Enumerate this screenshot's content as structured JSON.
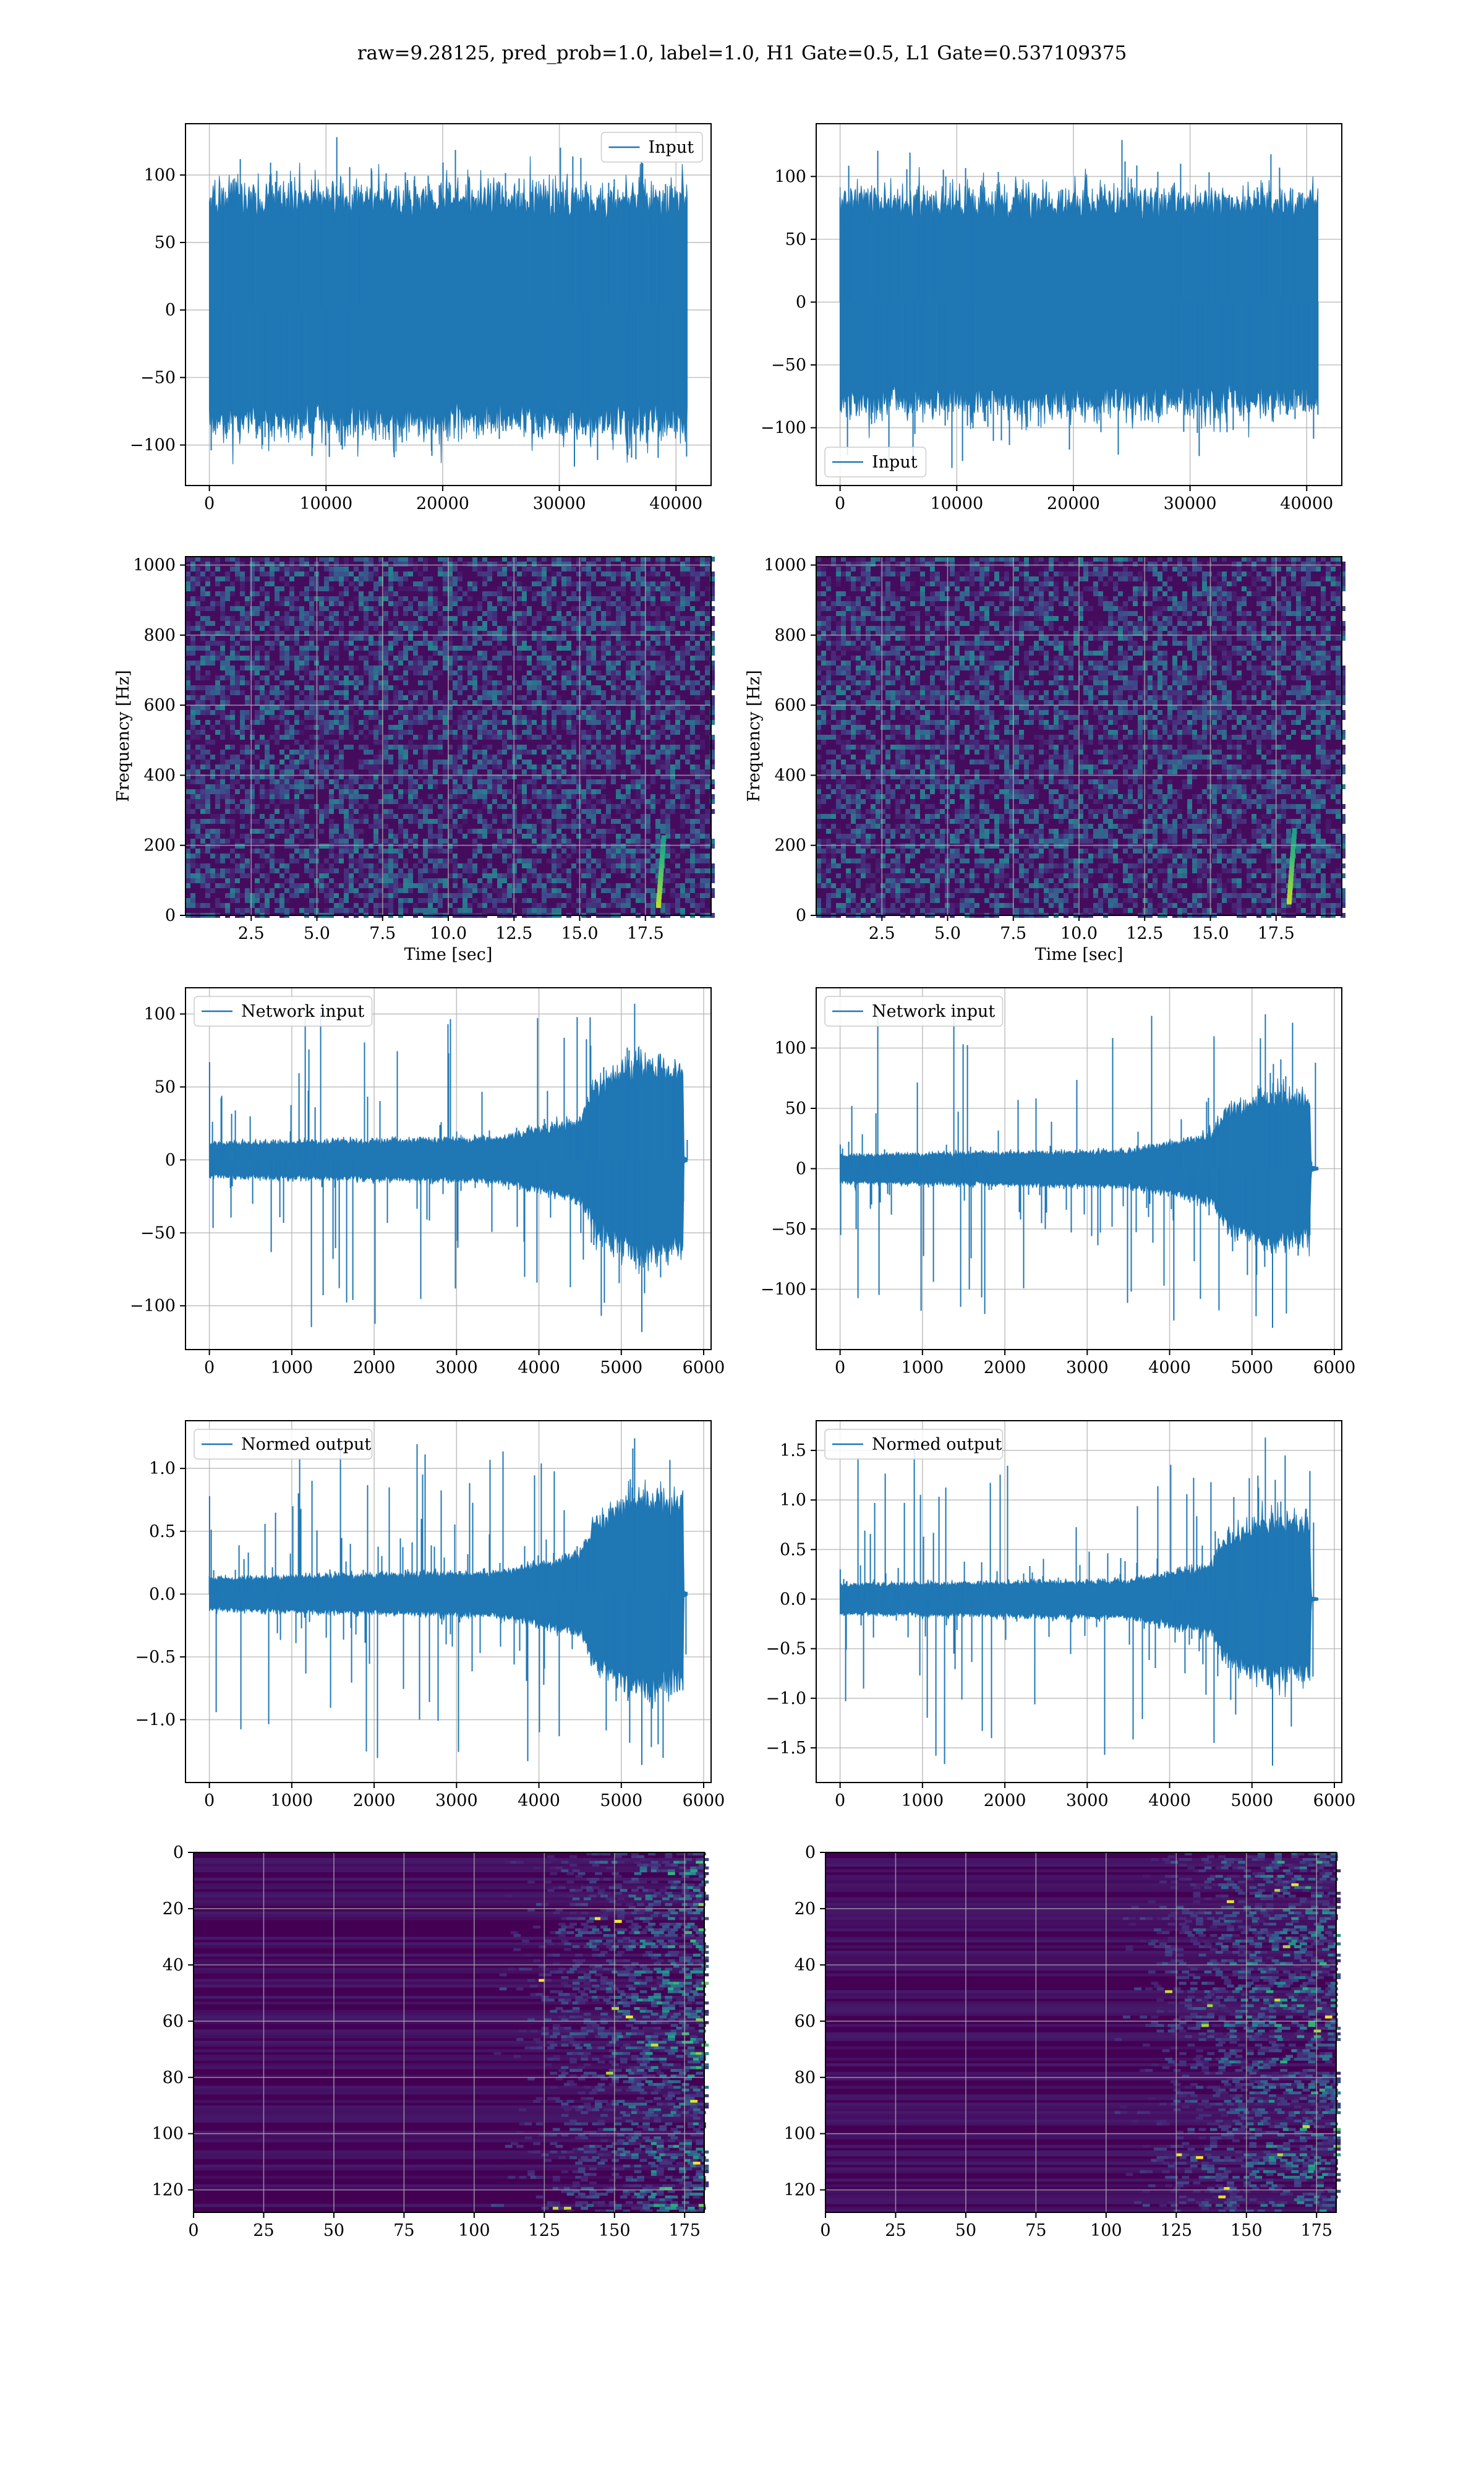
{
  "suptitle": "raw=9.28125, pred_prob=1.0, label=1.0, H1 Gate=0.5, L1 Gate=0.537109375",
  "colors": {
    "line": "#1f77b4",
    "viridis_dark": "#440154",
    "grid": "#b0b0b0"
  },
  "chart_data": [
    {
      "id": "input-h1",
      "type": "line",
      "series": [
        {
          "name": "Input"
        }
      ],
      "legend": "top-right",
      "grid": true,
      "xlim": [
        -2048,
        43008
      ],
      "ylim": [
        -130,
        138
      ],
      "xticks": [
        0,
        10000,
        20000,
        30000,
        40000
      ],
      "xticklabels": [
        "0",
        "10000",
        "20000",
        "30000",
        "40000"
      ],
      "yticks": [
        -100,
        -50,
        0,
        50,
        100
      ],
      "yticklabels": [
        "−100",
        "−50",
        "0",
        "50",
        "100"
      ],
      "signal": {
        "n": 40960,
        "envelope": [
          [
            0,
            75
          ],
          [
            40960,
            75
          ]
        ],
        "peak_max": 128,
        "peak_min": -116
      }
    },
    {
      "id": "input-l1",
      "type": "line",
      "series": [
        {
          "name": "Input"
        }
      ],
      "legend": "bottom-left",
      "grid": true,
      "xlim": [
        -2048,
        43008
      ],
      "ylim": [
        -146,
        142
      ],
      "xticks": [
        0,
        10000,
        20000,
        30000,
        40000
      ],
      "xticklabels": [
        "0",
        "10000",
        "20000",
        "30000",
        "40000"
      ],
      "yticks": [
        -100,
        -50,
        0,
        50,
        100
      ],
      "yticklabels": [
        "−100",
        "−50",
        "0",
        "50",
        "100"
      ],
      "signal": {
        "n": 40960,
        "envelope": [
          [
            0,
            72
          ],
          [
            40960,
            72
          ]
        ],
        "peak_max": 129,
        "peak_min": -132
      }
    },
    {
      "id": "spec-h1",
      "type": "heatmap",
      "colormap": "viridis",
      "grid": true,
      "xlabel": "Time [sec]",
      "ylabel": "Frequency [Hz]",
      "xlim": [
        0,
        20
      ],
      "ylim": [
        0,
        1024
      ],
      "xticks": [
        2.5,
        5,
        7.5,
        10,
        12.5,
        15,
        17.5
      ],
      "xticklabels": [
        "2.5",
        "5.0",
        "7.5",
        "10.0",
        "12.5",
        "15.0",
        "17.5"
      ],
      "yticks": [
        0,
        200,
        400,
        600,
        800,
        1000
      ],
      "yticklabels": [
        "0",
        "200",
        "400",
        "600",
        "800",
        "1000"
      ],
      "chirp": {
        "t_start": 18.0,
        "t_end": 18.2,
        "f_start": 30,
        "f_end": 220
      }
    },
    {
      "id": "spec-l1",
      "type": "heatmap",
      "colormap": "viridis",
      "grid": true,
      "xlabel": "Time [sec]",
      "ylabel": "Frequency [Hz]",
      "xlim": [
        0,
        20
      ],
      "ylim": [
        0,
        1024
      ],
      "xticks": [
        2.5,
        5,
        7.5,
        10,
        12.5,
        15,
        17.5
      ],
      "xticklabels": [
        "2.5",
        "5.0",
        "7.5",
        "10.0",
        "12.5",
        "15.0",
        "17.5"
      ],
      "yticks": [
        0,
        200,
        400,
        600,
        800,
        1000
      ],
      "yticklabels": [
        "0",
        "200",
        "400",
        "600",
        "800",
        "1000"
      ],
      "chirp": {
        "t_start": 18.0,
        "t_end": 18.2,
        "f_start": 40,
        "f_end": 240
      }
    },
    {
      "id": "net-h1",
      "type": "line",
      "series": [
        {
          "name": "Network input"
        }
      ],
      "legend": "top-left",
      "grid": true,
      "xlim": [
        -290,
        6090
      ],
      "ylim": [
        -130,
        118
      ],
      "xticks": [
        0,
        1000,
        2000,
        3000,
        4000,
        5000,
        6000
      ],
      "xticklabels": [
        "0",
        "1000",
        "2000",
        "3000",
        "4000",
        "5000",
        "6000"
      ],
      "yticks": [
        -100,
        -50,
        0,
        50,
        100
      ],
      "yticklabels": [
        "−100",
        "−50",
        "0",
        "50",
        "100"
      ],
      "signal": {
        "n": 5800,
        "envelope": [
          [
            0,
            10
          ],
          [
            3500,
            13
          ],
          [
            4500,
            24
          ],
          [
            4700,
            45
          ],
          [
            5200,
            58
          ],
          [
            5750,
            55
          ],
          [
            5760,
            2
          ],
          [
            5800,
            1
          ]
        ],
        "peak_max": 107,
        "peak_min": -118,
        "spike_start": 67
      }
    },
    {
      "id": "net-l1",
      "type": "line",
      "series": [
        {
          "name": "Network input"
        }
      ],
      "legend": "top-left",
      "grid": true,
      "xlim": [
        -290,
        6090
      ],
      "ylim": [
        -150,
        150
      ],
      "xticks": [
        0,
        1000,
        2000,
        3000,
        4000,
        5000,
        6000
      ],
      "xticklabels": [
        "0",
        "1000",
        "2000",
        "3000",
        "4000",
        "5000",
        "6000"
      ],
      "yticks": [
        -100,
        -50,
        0,
        50,
        100
      ],
      "yticklabels": [
        "−100",
        "−50",
        "0",
        "50",
        "100"
      ],
      "signal": {
        "n": 5800,
        "envelope": [
          [
            0,
            10
          ],
          [
            3500,
            13
          ],
          [
            4500,
            24
          ],
          [
            4700,
            44
          ],
          [
            5200,
            55
          ],
          [
            5700,
            52
          ],
          [
            5720,
            2
          ],
          [
            5800,
            1
          ]
        ],
        "peak_max": 128,
        "peak_min": -132,
        "spike_start": 20
      }
    },
    {
      "id": "norm-h1",
      "type": "line",
      "series": [
        {
          "name": "Normed output"
        }
      ],
      "legend": "top-left",
      "grid": true,
      "xlim": [
        -290,
        6090
      ],
      "ylim": [
        -1.5,
        1.38
      ],
      "xticks": [
        0,
        1000,
        2000,
        3000,
        4000,
        5000,
        6000
      ],
      "xticklabels": [
        "0",
        "1000",
        "2000",
        "3000",
        "4000",
        "5000",
        "6000"
      ],
      "yticks": [
        -1.0,
        -0.5,
        0.0,
        0.5,
        1.0
      ],
      "yticklabels": [
        "−1.0",
        "−0.5",
        "0.0",
        "0.5",
        "1.0"
      ],
      "signal": {
        "n": 5800,
        "envelope": [
          [
            0,
            0.11
          ],
          [
            3500,
            0.15
          ],
          [
            4500,
            0.28
          ],
          [
            4700,
            0.52
          ],
          [
            5200,
            0.68
          ],
          [
            5750,
            0.64
          ],
          [
            5760,
            0.02
          ],
          [
            5800,
            0.01
          ]
        ],
        "peak_max": 1.24,
        "peak_min": -1.36,
        "spike_start": 0.78
      }
    },
    {
      "id": "norm-l1",
      "type": "line",
      "series": [
        {
          "name": "Normed output"
        }
      ],
      "legend": "top-left",
      "grid": true,
      "xlim": [
        -290,
        6090
      ],
      "ylim": [
        -1.85,
        1.8
      ],
      "xticks": [
        0,
        1000,
        2000,
        3000,
        4000,
        5000,
        6000
      ],
      "xticklabels": [
        "0",
        "1000",
        "2000",
        "3000",
        "4000",
        "5000",
        "6000"
      ],
      "yticks": [
        -1.5,
        -1.0,
        -0.5,
        0.0,
        0.5,
        1.0,
        1.5
      ],
      "yticklabels": [
        "−1.5",
        "−1.0",
        "−0.5",
        "0.0",
        "0.5",
        "1.0",
        "1.5"
      ],
      "signal": {
        "n": 5800,
        "envelope": [
          [
            0,
            0.13
          ],
          [
            3500,
            0.16
          ],
          [
            4500,
            0.3
          ],
          [
            4700,
            0.55
          ],
          [
            5200,
            0.7
          ],
          [
            5700,
            0.66
          ],
          [
            5720,
            0.02
          ],
          [
            5800,
            0.01
          ]
        ],
        "peak_max": 1.63,
        "peak_min": -1.68,
        "spike_start": 0.3
      }
    },
    {
      "id": "map-h1",
      "type": "heatmap",
      "colormap": "viridis",
      "grid": true,
      "xlim": [
        0,
        182
      ],
      "ylim": [
        128,
        0
      ],
      "xticks": [
        0,
        25,
        50,
        75,
        100,
        125,
        150,
        175
      ],
      "xticklabels": [
        "0",
        "25",
        "50",
        "75",
        "100",
        "125",
        "150",
        "175"
      ],
      "yticks": [
        0,
        20,
        40,
        60,
        80,
        100,
        120
      ],
      "yticklabels": [
        "0",
        "20",
        "40",
        "60",
        "80",
        "100",
        "120"
      ],
      "activity_onset": 125
    },
    {
      "id": "map-l1",
      "type": "heatmap",
      "colormap": "viridis",
      "grid": true,
      "xlim": [
        0,
        182
      ],
      "ylim": [
        128,
        0
      ],
      "xticks": [
        0,
        25,
        50,
        75,
        100,
        125,
        150,
        175
      ],
      "xticklabels": [
        "0",
        "25",
        "50",
        "75",
        "100",
        "125",
        "150",
        "175"
      ],
      "yticks": [
        0,
        20,
        40,
        60,
        80,
        100,
        120
      ],
      "yticklabels": [
        "0",
        "20",
        "40",
        "60",
        "80",
        "100",
        "120"
      ],
      "activity_onset": 120
    }
  ]
}
